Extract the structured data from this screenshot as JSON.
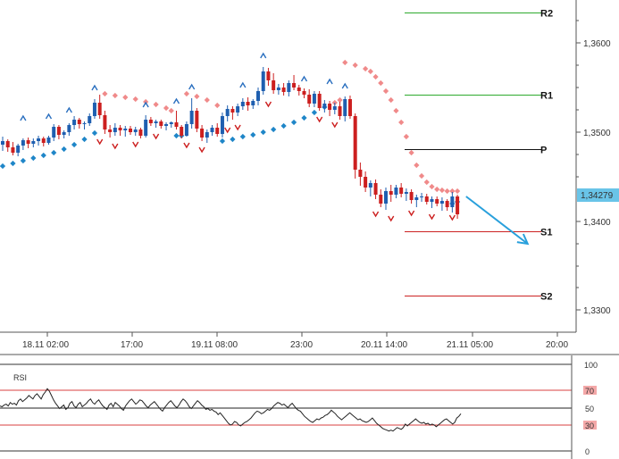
{
  "chart_data": [
    {
      "type": "candlestick",
      "price_ticks": [
        "1,3600",
        "1,3500",
        "1,3400",
        "1,3300"
      ],
      "current_price_label": "1,34279",
      "time_ticks": [
        "18.11 02:00",
        "17:00",
        "19.11 08:00",
        "23:00",
        "20.11 14:00",
        "21.11 05:00",
        "20:00"
      ],
      "ylim": [
        1.3275,
        1.3685
      ],
      "grid": false,
      "levels": [
        {
          "label": "R2",
          "value": 1.3634,
          "color": "#2eaa2e"
        },
        {
          "label": "R1",
          "value": 1.3542,
          "color": "#2eaa2e"
        },
        {
          "label": "P",
          "value": 1.3481,
          "color": "#111111"
        },
        {
          "label": "S1",
          "value": 1.3389,
          "color": "#cc2222"
        },
        {
          "label": "S2",
          "value": 1.3317,
          "color": "#cc2222"
        }
      ],
      "colors": {
        "bull": "#1f5fb0",
        "bear": "#cc1f1f",
        "sar_below": "#1f86c8",
        "sar_above": "#f08a8a",
        "arrow": "#29a0dc",
        "fractal_up": "#2a6fbf",
        "fractal_down": "#cc1f1f"
      },
      "candles": [
        [
          1.3486,
          1.3495,
          1.3479,
          1.349
        ],
        [
          1.349,
          1.3492,
          1.3478,
          1.3483
        ],
        [
          1.3483,
          1.3489,
          1.3474,
          1.3477
        ],
        [
          1.3477,
          1.3487,
          1.3473,
          1.3485
        ],
        [
          1.3485,
          1.3493,
          1.348,
          1.3491
        ],
        [
          1.3491,
          1.3494,
          1.3482,
          1.3487
        ],
        [
          1.3487,
          1.3493,
          1.3483,
          1.349
        ],
        [
          1.349,
          1.3496,
          1.3485,
          1.3493
        ],
        [
          1.3493,
          1.3495,
          1.3484,
          1.3488
        ],
        [
          1.3488,
          1.3496,
          1.3486,
          1.3494
        ],
        [
          1.3494,
          1.3509,
          1.349,
          1.3506
        ],
        [
          1.3506,
          1.3508,
          1.3492,
          1.3497
        ],
        [
          1.3497,
          1.3502,
          1.3493,
          1.35
        ],
        [
          1.35,
          1.351,
          1.3496,
          1.3508
        ],
        [
          1.3508,
          1.3518,
          1.3503,
          1.3514
        ],
        [
          1.3514,
          1.3516,
          1.3504,
          1.3509
        ],
        [
          1.3509,
          1.3512,
          1.3503,
          1.351
        ],
        [
          1.351,
          1.3521,
          1.3507,
          1.3518
        ],
        [
          1.3518,
          1.3537,
          1.3515,
          1.3533
        ],
        [
          1.3533,
          1.3542,
          1.3515,
          1.3519
        ],
        [
          1.3519,
          1.3524,
          1.3498,
          1.3503
        ],
        [
          1.3503,
          1.3508,
          1.3494,
          1.35
        ],
        [
          1.35,
          1.351,
          1.3496,
          1.3505
        ],
        [
          1.3505,
          1.3508,
          1.3496,
          1.3502
        ],
        [
          1.3502,
          1.3507,
          1.3495,
          1.3504
        ],
        [
          1.3504,
          1.3507,
          1.3497,
          1.35
        ],
        [
          1.35,
          1.3506,
          1.3496,
          1.3503
        ],
        [
          1.3503,
          1.3505,
          1.3493,
          1.3496
        ],
        [
          1.3496,
          1.3519,
          1.3494,
          1.3514
        ],
        [
          1.3514,
          1.3517,
          1.3507,
          1.351
        ],
        [
          1.351,
          1.3514,
          1.3505,
          1.3512
        ],
        [
          1.3512,
          1.3514,
          1.3504,
          1.3507
        ],
        [
          1.3507,
          1.3511,
          1.3502,
          1.3509
        ],
        [
          1.3509,
          1.3512,
          1.3505,
          1.3511
        ],
        [
          1.3511,
          1.3524,
          1.3503,
          1.3506
        ],
        [
          1.3506,
          1.3508,
          1.3493,
          1.3496
        ],
        [
          1.3496,
          1.3512,
          1.3495,
          1.3509
        ],
        [
          1.3509,
          1.3538,
          1.3504,
          1.3524
        ],
        [
          1.3524,
          1.3527,
          1.35,
          1.3504
        ],
        [
          1.3504,
          1.3508,
          1.349,
          1.3494
        ],
        [
          1.3494,
          1.3503,
          1.3488,
          1.35
        ],
        [
          1.35,
          1.3508,
          1.3496,
          1.3505
        ],
        [
          1.3505,
          1.351,
          1.3495,
          1.3498
        ],
        [
          1.3498,
          1.3522,
          1.3494,
          1.3518
        ],
        [
          1.3518,
          1.353,
          1.3512,
          1.3526
        ],
        [
          1.3526,
          1.3529,
          1.3514,
          1.3522
        ],
        [
          1.3522,
          1.3532,
          1.3518,
          1.3529
        ],
        [
          1.3529,
          1.3538,
          1.3525,
          1.3534
        ],
        [
          1.3534,
          1.3539,
          1.3524,
          1.353
        ],
        [
          1.353,
          1.3537,
          1.3526,
          1.3535
        ],
        [
          1.3535,
          1.355,
          1.353,
          1.3546
        ],
        [
          1.3546,
          1.3573,
          1.3542,
          1.3568
        ],
        [
          1.3568,
          1.3572,
          1.3552,
          1.3558
        ],
        [
          1.3558,
          1.3566,
          1.3543,
          1.3547
        ],
        [
          1.3547,
          1.3554,
          1.3542,
          1.355
        ],
        [
          1.355,
          1.3555,
          1.3541,
          1.3545
        ],
        [
          1.3545,
          1.3558,
          1.354,
          1.3555
        ],
        [
          1.3555,
          1.3564,
          1.3547,
          1.355
        ],
        [
          1.355,
          1.3553,
          1.3541,
          1.3546
        ],
        [
          1.3546,
          1.3549,
          1.3538,
          1.3542
        ],
        [
          1.3542,
          1.3548,
          1.3528,
          1.3532
        ],
        [
          1.3532,
          1.3546,
          1.3528,
          1.3543
        ],
        [
          1.3543,
          1.3546,
          1.3524,
          1.3527
        ],
        [
          1.3527,
          1.3536,
          1.3522,
          1.3532
        ],
        [
          1.3532,
          1.3535,
          1.3518,
          1.3525
        ],
        [
          1.3525,
          1.3533,
          1.352,
          1.3529
        ],
        [
          1.3529,
          1.3534,
          1.3514,
          1.3518
        ],
        [
          1.3518,
          1.354,
          1.3512,
          1.3537
        ],
        [
          1.3537,
          1.3541,
          1.3515,
          1.3518
        ],
        [
          1.3518,
          1.3521,
          1.3448,
          1.3458
        ],
        [
          1.3458,
          1.3466,
          1.344,
          1.345
        ],
        [
          1.345,
          1.3456,
          1.3433,
          1.3438
        ],
        [
          1.3438,
          1.3446,
          1.3428,
          1.3443
        ],
        [
          1.3443,
          1.3447,
          1.3425,
          1.343
        ],
        [
          1.343,
          1.3436,
          1.3416,
          1.342
        ],
        [
          1.342,
          1.3438,
          1.3413,
          1.3434
        ],
        [
          1.3434,
          1.3441,
          1.3422,
          1.343
        ],
        [
          1.343,
          1.3441,
          1.3426,
          1.3438
        ],
        [
          1.3438,
          1.3443,
          1.3427,
          1.3431
        ],
        [
          1.3431,
          1.3437,
          1.3423,
          1.3433
        ],
        [
          1.3433,
          1.3436,
          1.342,
          1.3424
        ],
        [
          1.3424,
          1.343,
          1.3416,
          1.3427
        ],
        [
          1.3427,
          1.3432,
          1.3422,
          1.3428
        ],
        [
          1.3428,
          1.3431,
          1.3419,
          1.3422
        ],
        [
          1.3422,
          1.3428,
          1.3415,
          1.3425
        ],
        [
          1.3425,
          1.3428,
          1.3417,
          1.342
        ],
        [
          1.342,
          1.3427,
          1.3412,
          1.3423
        ],
        [
          1.3423,
          1.3425,
          1.3412,
          1.3416
        ],
        [
          1.3416,
          1.3433,
          1.341,
          1.3428
        ],
        [
          1.3428,
          1.343,
          1.3403,
          1.3408
        ]
      ],
      "sar": [
        [
          0,
          1.3462
        ],
        [
          2,
          1.3465
        ],
        [
          4,
          1.3468
        ],
        [
          6,
          1.3471
        ],
        [
          8,
          1.3474
        ],
        [
          10,
          1.3477
        ],
        [
          12,
          1.3481
        ],
        [
          14,
          1.3486
        ],
        [
          16,
          1.3492
        ],
        [
          18,
          1.3499
        ],
        [
          20,
          1.3543
        ],
        [
          22,
          1.3541
        ],
        [
          24,
          1.3539
        ],
        [
          26,
          1.3537
        ],
        [
          28,
          1.3534
        ],
        [
          30,
          1.3531
        ],
        [
          32,
          1.3527
        ],
        [
          33,
          1.3524
        ],
        [
          34,
          1.3496
        ],
        [
          35,
          1.3496
        ],
        [
          36,
          1.3543
        ],
        [
          38,
          1.354
        ],
        [
          40,
          1.3536
        ],
        [
          42,
          1.353
        ],
        [
          43,
          1.349
        ],
        [
          45,
          1.3492
        ],
        [
          47,
          1.3495
        ],
        [
          49,
          1.3497
        ],
        [
          51,
          1.35
        ],
        [
          53,
          1.3503
        ],
        [
          55,
          1.3507
        ],
        [
          57,
          1.3511
        ],
        [
          59,
          1.3516
        ],
        [
          61,
          1.3522
        ],
        [
          63,
          1.3528
        ],
        [
          65,
          1.3533
        ],
        [
          66,
          1.3536
        ],
        [
          67,
          1.3578
        ],
        [
          69,
          1.3575
        ],
        [
          71,
          1.3571
        ],
        [
          72,
          1.3568
        ],
        [
          73,
          1.3562
        ],
        [
          74,
          1.3555
        ],
        [
          75,
          1.3546
        ],
        [
          76,
          1.3536
        ],
        [
          77,
          1.3524
        ],
        [
          78,
          1.3511
        ],
        [
          79,
          1.3495
        ],
        [
          80,
          1.3477
        ],
        [
          81,
          1.3463
        ],
        [
          82,
          1.3451
        ],
        [
          83,
          1.3444
        ],
        [
          84,
          1.3439
        ],
        [
          85,
          1.3436
        ],
        [
          86,
          1.3435
        ],
        [
          87,
          1.3434
        ],
        [
          88,
          1.3434
        ],
        [
          89,
          1.3434
        ],
        [
          88,
          1.342
        ],
        [
          89,
          1.3422
        ]
      ],
      "fractals_up": [
        [
          4,
          1.3515
        ],
        [
          9,
          1.3517
        ],
        [
          13,
          1.3524
        ],
        [
          18,
          1.3549
        ],
        [
          28,
          1.353
        ],
        [
          34,
          1.3534
        ],
        [
          37,
          1.355
        ],
        [
          47,
          1.3552
        ],
        [
          51,
          1.3585
        ],
        [
          59,
          1.3559
        ],
        [
          64,
          1.3556
        ],
        [
          67,
          1.3551
        ]
      ],
      "fractals_down": [
        [
          19,
          1.349
        ],
        [
          22,
          1.3485
        ],
        [
          26,
          1.3487
        ],
        [
          30,
          1.3496
        ],
        [
          36,
          1.3486
        ],
        [
          39,
          1.3481
        ],
        [
          44,
          1.3503
        ],
        [
          46,
          1.3506
        ],
        [
          52,
          1.3532
        ],
        [
          62,
          1.3515
        ],
        [
          65,
          1.3509
        ],
        [
          73,
          1.3409
        ],
        [
          76,
          1.3404
        ],
        [
          80,
          1.341
        ],
        [
          84,
          1.3406
        ],
        [
          88,
          1.3405
        ]
      ],
      "forecast_arrow": {
        "from": [
          90,
          1.3428
        ],
        "to": [
          101,
          1.3375
        ]
      }
    },
    {
      "type": "line",
      "title": "RSI",
      "ylim": [
        0,
        100
      ],
      "axis_ticks": [
        "100",
        "70",
        "50",
        "30",
        "0"
      ],
      "levels": [
        70,
        50,
        30
      ],
      "values": [
        52,
        51,
        53,
        54,
        52,
        56,
        54,
        55,
        53,
        58,
        60,
        57,
        59,
        61,
        64,
        62,
        60,
        64,
        66,
        63,
        60,
        65,
        68,
        72,
        69,
        64,
        59,
        55,
        52,
        49,
        51,
        53,
        48,
        50,
        55,
        57,
        52,
        50,
        54,
        56,
        51,
        53,
        55,
        58,
        60,
        56,
        54,
        57,
        59,
        55,
        52,
        50,
        48,
        53,
        55,
        51,
        56,
        54,
        52,
        49,
        47,
        52,
        55,
        58,
        60,
        57,
        54,
        56,
        59,
        58,
        55,
        52,
        50,
        53,
        55,
        57,
        54,
        51,
        48,
        46,
        50,
        53,
        56,
        58,
        55,
        52,
        50,
        53,
        57,
        60,
        58,
        55,
        51,
        49,
        52,
        55,
        58,
        56,
        53,
        51,
        48,
        49,
        47,
        48,
        46,
        45,
        42,
        44,
        41,
        38,
        35,
        32,
        30,
        31,
        34,
        33,
        30,
        29,
        31,
        33,
        34,
        36,
        38,
        41,
        44,
        46,
        45,
        43,
        44,
        46,
        48,
        47,
        49,
        52,
        54,
        56,
        55,
        53,
        54,
        52,
        50,
        53,
        55,
        52,
        49,
        47,
        46,
        43,
        40,
        38,
        36,
        34,
        33,
        35,
        37,
        36,
        38,
        39,
        41,
        42,
        44,
        47,
        45,
        43,
        40,
        38,
        36,
        38,
        40,
        42,
        44,
        42,
        40,
        38,
        36,
        37,
        35,
        34,
        33,
        34,
        36,
        38,
        35,
        32,
        30,
        28,
        26,
        25,
        24,
        23,
        24,
        23,
        25,
        27,
        26,
        25,
        27,
        31,
        29,
        31,
        33,
        35,
        37,
        35,
        33,
        32,
        33,
        31,
        32,
        30,
        31,
        30,
        28,
        30,
        32,
        34,
        36,
        37,
        35,
        33,
        31,
        33,
        38,
        40,
        43
      ]
    }
  ]
}
